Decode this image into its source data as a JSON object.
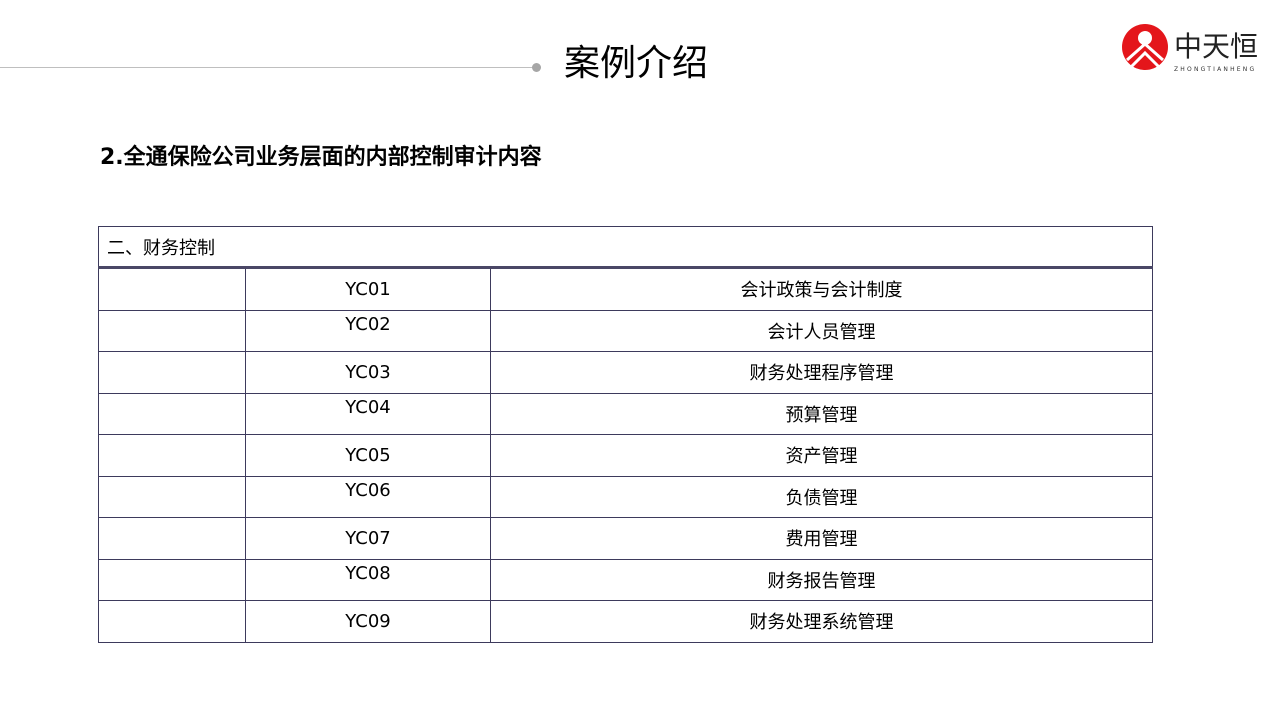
{
  "header": {
    "title": "案例介绍",
    "logo": {
      "name": "中天恒",
      "pinyin": "ZHONGTIANHENG",
      "brand_color": "#e4161b"
    }
  },
  "subtitle": "2.全通保险公司业务层面的内部控制审计内容",
  "table": {
    "section": "二、财务控制",
    "rows": [
      {
        "code": "YC01",
        "name": "会计政策与会计制度"
      },
      {
        "code": "YC02",
        "name": "会计人员管理"
      },
      {
        "code": "YC03",
        "name": "财务处理程序管理"
      },
      {
        "code": "YC04",
        "name": "预算管理"
      },
      {
        "code": "YC05",
        "name": "资产管理"
      },
      {
        "code": "YC06",
        "name": "负债管理"
      },
      {
        "code": "YC07",
        "name": "费用管理"
      },
      {
        "code": "YC08",
        "name": "财务报告管理"
      },
      {
        "code": "YC09",
        "name": "财务处理系统管理"
      }
    ]
  }
}
